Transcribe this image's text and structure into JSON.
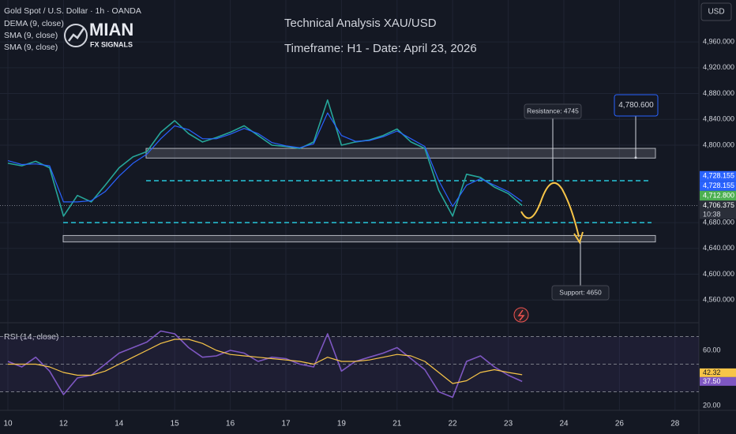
{
  "chart_data": [
    {
      "type": "line",
      "title": "Technical Analysis XAU/USD",
      "subtitle": "Timeframe: H1 - Date: April 23, 2026",
      "currency": "USD",
      "categories": [
        "10",
        null,
        null,
        null,
        "12",
        null,
        null,
        null,
        "14",
        null,
        null,
        null,
        "15",
        null,
        null,
        null,
        "16",
        null,
        null,
        null,
        "17",
        null,
        null,
        null,
        "19",
        null,
        null,
        null,
        "21",
        null,
        null,
        null,
        "22",
        null,
        null,
        null,
        "23",
        null,
        null,
        null,
        "24",
        null,
        null,
        null,
        "26",
        null,
        null,
        null,
        "28",
        null
      ],
      "series": [
        {
          "name": "Gold Spot / U.S. Dollar · 1h · OANDA",
          "color": "#26a69a",
          "values": [
            4772,
            4768,
            4775,
            4765,
            4690,
            4722,
            4712,
            4738,
            4765,
            4782,
            4790,
            4820,
            4838,
            4818,
            4805,
            4812,
            4820,
            4830,
            4815,
            4800,
            4798,
            4795,
            4805,
            4870,
            4800,
            4805,
            4808,
            4815,
            4825,
            4805,
            4795,
            4730,
            4690,
            4755,
            4750,
            4735,
            4725,
            4706.375,
            null,
            null,
            null,
            null,
            null,
            null,
            null,
            null,
            null,
            null,
            null,
            null
          ]
        },
        {
          "name": "DEMA (9, close)",
          "color": "#2962ff",
          "values": [
            4776,
            4770,
            4771,
            4768,
            4712,
            4712,
            4714,
            4728,
            4752,
            4772,
            4786,
            4810,
            4830,
            4824,
            4810,
            4810,
            4817,
            4826,
            4818,
            4804,
            4799,
            4796,
            4802,
            4850,
            4815,
            4806,
            4807,
            4813,
            4822,
            4810,
            4798,
            4745,
            4705,
            4738,
            4748,
            4738,
            4728,
            4712.8,
            null,
            null,
            null,
            null,
            null,
            null,
            null,
            null,
            null,
            null,
            null,
            null
          ]
        }
      ],
      "indicator_labels": [
        "SMA (9, close)",
        "SMA (9, close)"
      ],
      "logo": {
        "name": "MIAN",
        "tagline": "FX SIGNALS"
      },
      "ylim": [
        4526,
        5025
      ],
      "yticks": [
        {
          "value": 4560,
          "label": "4,560.000"
        },
        {
          "value": 4600,
          "label": "4,600.000"
        },
        {
          "value": 4640,
          "label": "4,640.000"
        },
        {
          "value": 4680,
          "label": "4,680.000"
        },
        {
          "value": 4800,
          "label": "4,800.000"
        },
        {
          "value": 4840,
          "label": "4,840.000"
        },
        {
          "value": 4880,
          "label": "4,880.000"
        },
        {
          "value": 4920,
          "label": "4,920.000"
        },
        {
          "value": 4960,
          "label": "4,960.000"
        }
      ],
      "grid": true,
      "zones": [
        [
          4780,
          4795
        ],
        [
          4650,
          4660
        ]
      ],
      "levels": [
        4745,
        4680
      ],
      "annotations": [
        {
          "text": "Resistance: 4745",
          "value": 4745
        },
        {
          "text": "Support: 4650",
          "value": 4650
        }
      ],
      "price_box": {
        "value": 4780.6,
        "label": "4,780.600"
      },
      "price_labels": [
        {
          "value": 4728.155,
          "label": "4,728.155",
          "color": "#2962ff"
        },
        {
          "value": 4728.155,
          "label": "4,728.155",
          "color": "#2962ff"
        },
        {
          "value": 4712.8,
          "label": "4,712.800",
          "color": "#4caf50"
        },
        {
          "value": 4706.375,
          "label": "4,706.375",
          "color": "#2a2e39"
        }
      ],
      "countdown": "10:38"
    },
    {
      "type": "line",
      "title": "RSI (14, close)",
      "series": [
        {
          "color": "#7e57c2",
          "values": [
            52,
            48,
            55,
            45,
            28,
            40,
            42,
            50,
            58,
            62,
            66,
            74,
            72,
            62,
            55,
            56,
            60,
            58,
            52,
            55,
            54,
            50,
            48,
            72,
            45,
            52,
            55,
            58,
            62,
            54,
            46,
            30,
            26,
            52,
            56,
            48,
            42,
            37.5,
            null,
            null,
            null,
            null,
            null,
            null,
            null,
            null,
            null,
            null,
            null,
            null
          ]
        },
        {
          "color": "#f7c548",
          "values": [
            50,
            50,
            50,
            48,
            44,
            42,
            42,
            45,
            50,
            55,
            60,
            65,
            68,
            68,
            65,
            60,
            57,
            56,
            55,
            54,
            53,
            52,
            50,
            55,
            52,
            52,
            53,
            55,
            57,
            56,
            52,
            44,
            36,
            38,
            44,
            46,
            44,
            42.32,
            null,
            null,
            null,
            null,
            null,
            null,
            null,
            null,
            null,
            null,
            null,
            null
          ]
        }
      ],
      "ylim": [
        16.6,
        79.4
      ],
      "yticks": [
        {
          "value": 20,
          "label": "20.00"
        },
        {
          "value": 60,
          "label": "60.00"
        }
      ],
      "bands": [
        70,
        50,
        30
      ],
      "price_labels": [
        {
          "value": 42.32,
          "label": "42.32",
          "color": "#f7c548"
        },
        {
          "value": 37.5,
          "label": "37.50",
          "color": "#7e57c2"
        }
      ]
    }
  ]
}
